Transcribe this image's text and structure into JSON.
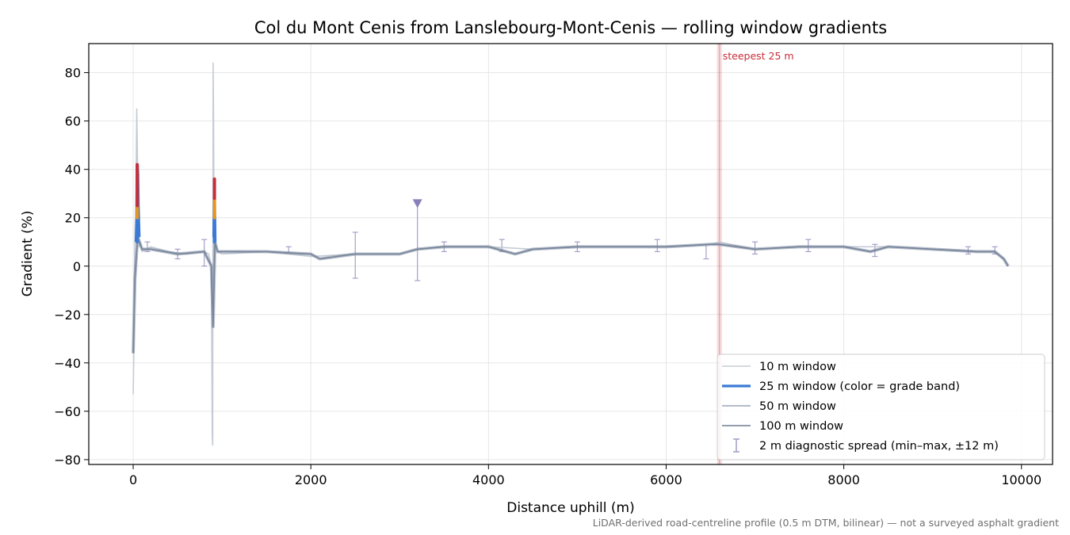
{
  "chart_data": {
    "type": "line",
    "title": "Col du Mont Cenis from Lanslebourg-Mont-Cenis — rolling window gradients",
    "xlabel": "Distance uphill (m)",
    "ylabel": "Gradient (%)",
    "xlim": [
      -500,
      10350
    ],
    "ylim": [
      -82,
      92
    ],
    "xticks": [
      0,
      2000,
      4000,
      6000,
      8000,
      10000
    ],
    "yticks": [
      -80,
      -60,
      -40,
      -20,
      0,
      20,
      40,
      60,
      80
    ],
    "xtick_labels": [
      "0",
      "2000",
      "4000",
      "6000",
      "8000",
      "10000"
    ],
    "ytick_labels": [
      "−80",
      "−60",
      "−40",
      "−20",
      "0",
      "20",
      "40",
      "60",
      "80"
    ],
    "grid": true,
    "legend_position": "lower-right",
    "legend": [
      {
        "label": "10 m window",
        "color": "#c5ccd6",
        "style": "line"
      },
      {
        "label": "25 m window (color = grade band)",
        "color": "#3a7bd5",
        "style": "thick-line"
      },
      {
        "label": "50 m window",
        "color": "#9aa6b8",
        "style": "line"
      },
      {
        "label": "100 m window",
        "color": "#6e7d92",
        "style": "line"
      },
      {
        "label": "2 m diagnostic spread (min–max, ±12 m)",
        "color": "#9d96c2",
        "style": "errorbar"
      }
    ],
    "steepest_marker": {
      "x": 6600,
      "label": "steepest 25 m",
      "color": "#c62f3a"
    },
    "peak_marker": {
      "x": 3200,
      "y": 26,
      "color": "#8a80b8"
    },
    "footnote": "LiDAR-derived road-centreline profile (0.5 m DTM, bilinear) — not a surveyed asphalt gradient",
    "series": [
      {
        "name": "10 m window",
        "color": "#c5ccd6",
        "x": [
          0,
          10,
          15,
          20,
          30,
          40,
          50,
          60,
          70,
          80,
          100,
          150,
          200,
          400,
          600,
          800,
          850,
          880,
          890,
          895,
          900,
          905,
          910,
          920,
          950,
          1000,
          1500,
          2000,
          2500,
          3000,
          3200,
          3500,
          4000,
          4500,
          5000,
          5500,
          6000,
          6500,
          6600,
          7000,
          7500,
          8000,
          8500,
          9000,
          9500,
          9700,
          9800,
          9850
        ],
        "y": [
          -53,
          -30,
          0,
          15,
          30,
          65,
          40,
          20,
          8,
          10,
          6,
          7,
          8,
          6,
          5,
          6,
          5,
          0,
          -70,
          -74,
          84,
          60,
          20,
          8,
          6,
          5,
          6,
          4,
          5,
          5,
          7,
          8,
          8,
          7,
          8,
          8,
          8,
          9,
          10,
          7,
          8,
          8,
          8,
          7,
          6,
          6,
          3,
          0
        ]
      },
      {
        "name": "100 m window",
        "color": "#6e7d92",
        "x": [
          0,
          20,
          50,
          100,
          200,
          500,
          800,
          880,
          900,
          920,
          950,
          1000,
          1500,
          2000,
          2100,
          2500,
          3000,
          3200,
          3500,
          4000,
          4300,
          4500,
          5000,
          5500,
          6000,
          6500,
          6600,
          7000,
          7500,
          8000,
          8300,
          8500,
          9000,
          9500,
          9700,
          9800,
          9850
        ],
        "y": [
          -36,
          -5,
          12,
          7,
          7,
          5,
          6,
          0,
          -25,
          10,
          6,
          6,
          6,
          5,
          3,
          5,
          5,
          7,
          8,
          8,
          5,
          7,
          8,
          8,
          8,
          9,
          9,
          7,
          8,
          8,
          6,
          8,
          7,
          6,
          6,
          3,
          0
        ]
      },
      {
        "name": "25 m window (color = grade band)",
        "color": "#3a7bd5",
        "x": [
          30,
          40,
          45,
          50,
          55,
          60,
          70
        ],
        "y": [
          10,
          20,
          35,
          42,
          38,
          25,
          12
        ]
      },
      {
        "name": "25 m window (color = grade band)",
        "color": "#3a7bd5",
        "x": [
          905,
          910,
          915,
          920,
          925
        ],
        "y": [
          12,
          28,
          36,
          24,
          10
        ]
      }
    ],
    "errorbars": [
      {
        "x": 160,
        "min": 6,
        "max": 10
      },
      {
        "x": 500,
        "min": 3,
        "max": 7
      },
      {
        "x": 800,
        "min": 0,
        "max": 11
      },
      {
        "x": 1750,
        "min": 5,
        "max": 8
      },
      {
        "x": 2500,
        "min": -5,
        "max": 14
      },
      {
        "x": 3200,
        "min": -6,
        "max": 26
      },
      {
        "x": 3500,
        "min": 6,
        "max": 10
      },
      {
        "x": 4150,
        "min": 6,
        "max": 11
      },
      {
        "x": 5000,
        "min": 6,
        "max": 10
      },
      {
        "x": 5900,
        "min": 6,
        "max": 11
      },
      {
        "x": 6450,
        "min": 3,
        "max": 9
      },
      {
        "x": 7000,
        "min": 5,
        "max": 10
      },
      {
        "x": 7600,
        "min": 6,
        "max": 11
      },
      {
        "x": 8350,
        "min": 4,
        "max": 9
      },
      {
        "x": 9400,
        "min": 5,
        "max": 8
      },
      {
        "x": 9700,
        "min": 5,
        "max": 8
      }
    ]
  }
}
